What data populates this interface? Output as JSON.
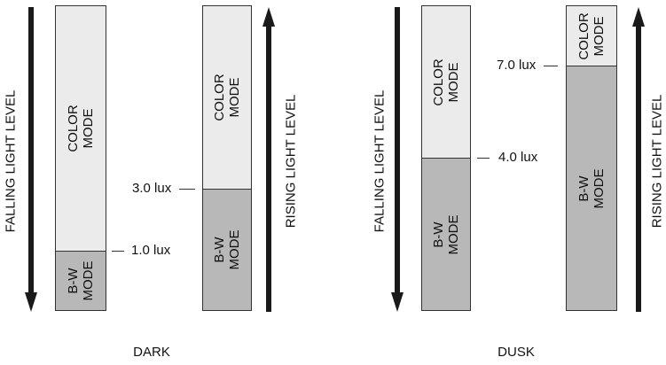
{
  "colors": {
    "color_mode": "#ebebeb",
    "bw_mode": "#b8b8b8",
    "ink": "#333333"
  },
  "panels": [
    {
      "title": "DARK",
      "falling_label": "FALLING LIGHT LEVEL",
      "rising_label": "RISING LIGHT LEVEL",
      "falling_bar": {
        "top_mode": "COLOR\nMODE",
        "bottom_mode": "B-W\nMODE",
        "threshold": "1.0 lux",
        "threshold_fraction_from_top": 0.803
      },
      "rising_bar": {
        "top_mode": "COLOR\nMODE",
        "bottom_mode": "B-W\nMODE",
        "threshold": "3.0 lux",
        "threshold_fraction_from_top": 0.586
      }
    },
    {
      "title": "DUSK",
      "falling_label": "FALLING LIGHT LEVEL",
      "rising_label": "RISING LIGHT LEVEL",
      "falling_bar": {
        "top_mode": "COLOR\nMODE",
        "bottom_mode": "B-W\nMODE",
        "threshold": "4.0 lux",
        "threshold_fraction_from_top": 0.497
      },
      "rising_bar": {
        "top_mode": "COLOR\nMODE",
        "bottom_mode": "B-W\nMODE",
        "threshold": "7.0 lux",
        "threshold_fraction_from_top": 0.196
      }
    }
  ]
}
